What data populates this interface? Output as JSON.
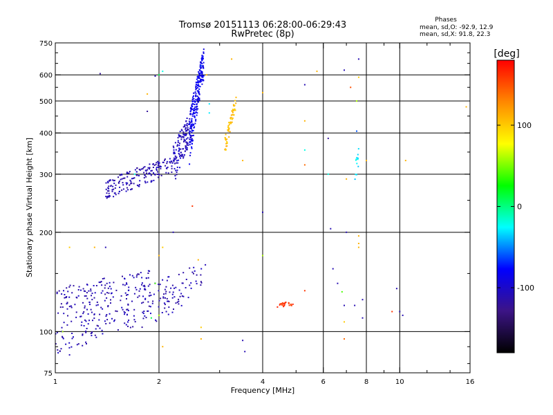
{
  "chart_data": {
    "type": "scatter",
    "title": "Tromsø 20151113 06:28:00-06:29:43",
    "subtitle": "RwPretec (8p)",
    "xlabel": "Frequency [MHz]",
    "ylabel": "Stationary phase Virtual Height [km]",
    "x_scale": "log",
    "y_scale": "log",
    "xlim": [
      1,
      16
    ],
    "ylim": [
      75,
      750
    ],
    "x_ticks": [
      1,
      2,
      4,
      6,
      8,
      10,
      16
    ],
    "x_tick_labels": [
      "1",
      "2",
      "4",
      "6",
      "8",
      "10",
      "16"
    ],
    "y_ticks": [
      75,
      100,
      200,
      300,
      400,
      500,
      600,
      750
    ],
    "y_tick_labels": [
      "75",
      "100",
      "200",
      "300",
      "400",
      "500",
      "600",
      "750"
    ],
    "x_minor_ticks": [
      3,
      5,
      7,
      9,
      12,
      14
    ],
    "y_minor_ticks": [
      80,
      90,
      150,
      250,
      350,
      450,
      550,
      650,
      700
    ],
    "grid": true,
    "stats": {
      "heading": "Phases",
      "line_O": "mean, sd,O: -92.9, 12.9",
      "line_X": "mean, sd,X:  91.8, 22.3"
    },
    "colorbar": {
      "label": "[deg]",
      "range": [
        -180,
        180
      ],
      "ticks": [
        100,
        0,
        -100
      ],
      "tick_labels": [
        "100",
        "0",
        "-100"
      ],
      "colormap": [
        "#000000",
        "#3c1486",
        "#0000ff",
        "#00ffff",
        "#00ff00",
        "#ffff00",
        "#ff8800",
        "#ff0000"
      ]
    },
    "clusters": [
      {
        "f_min": 1.0,
        "f_max": 1.9,
        "h_start": 110,
        "h_end": 130,
        "n": 260,
        "spread": 25,
        "phase": -110
      },
      {
        "f_min": 1.8,
        "f_max": 2.75,
        "h_start": 120,
        "h_end": 145,
        "n": 90,
        "spread": 18,
        "phase": -110
      },
      {
        "f_min": 1.4,
        "f_max": 2.2,
        "h_start": 270,
        "h_end": 320,
        "n": 180,
        "spread": 20,
        "phase": -110
      },
      {
        "f_min": 2.2,
        "f_max": 2.5,
        "h_start": 320,
        "h_end": 430,
        "n": 140,
        "spread": 45,
        "phase": -105
      },
      {
        "f_min": 2.45,
        "f_max": 2.7,
        "h_start": 380,
        "h_end": 650,
        "n": 220,
        "spread": 70,
        "phase": -85
      },
      {
        "f_min": 3.1,
        "f_max": 3.35,
        "h_start": 360,
        "h_end": 500,
        "n": 60,
        "spread": 25,
        "phase": 105
      },
      {
        "f_min": 4.4,
        "f_max": 4.9,
        "h_start": 120,
        "h_end": 122,
        "n": 22,
        "spread": 2,
        "phase": 160
      },
      {
        "f_min": 7.4,
        "f_max": 7.6,
        "h_start": 300,
        "h_end": 340,
        "n": 12,
        "spread": 20,
        "phase": -30
      }
    ],
    "points": [
      [
        1.35,
        605,
        -120
      ],
      [
        1.85,
        525,
        110
      ],
      [
        1.85,
        465,
        -120
      ],
      [
        1.95,
        595,
        -110
      ],
      [
        2.05,
        615,
        -20
      ],
      [
        2.0,
        600,
        10
      ],
      [
        2.75,
        600,
        110
      ],
      [
        2.65,
        640,
        -60
      ],
      [
        2.8,
        490,
        -30
      ],
      [
        2.8,
        460,
        -30
      ],
      [
        3.25,
        670,
        110
      ],
      [
        4.0,
        530,
        110
      ],
      [
        5.3,
        560,
        -110
      ],
      [
        5.75,
        615,
        110
      ],
      [
        5.3,
        435,
        110
      ],
      [
        5.3,
        355,
        -20
      ],
      [
        5.3,
        320,
        140
      ],
      [
        6.2,
        385,
        -120
      ],
      [
        6.2,
        300,
        -20
      ],
      [
        6.9,
        620,
        -110
      ],
      [
        7.2,
        550,
        150
      ],
      [
        7.5,
        405,
        -60
      ],
      [
        7.6,
        590,
        100
      ],
      [
        7.6,
        670,
        -110
      ],
      [
        7.5,
        500,
        60
      ],
      [
        6.3,
        205,
        -110
      ],
      [
        7.0,
        200,
        -110
      ],
      [
        7.6,
        195,
        110
      ],
      [
        7.6,
        185,
        110
      ],
      [
        7.6,
        180,
        110
      ],
      [
        7.0,
        290,
        110
      ],
      [
        10.4,
        330,
        110
      ],
      [
        15.6,
        480,
        110
      ],
      [
        4.0,
        230,
        -110
      ],
      [
        4.0,
        170,
        60
      ],
      [
        3.5,
        330,
        110
      ],
      [
        2.5,
        240,
        160
      ],
      [
        2.2,
        200,
        -110
      ],
      [
        1.7,
        300,
        -20
      ],
      [
        1.1,
        180,
        100
      ],
      [
        1.4,
        180,
        -110
      ],
      [
        1.3,
        180,
        110
      ],
      [
        2.05,
        180,
        100
      ],
      [
        2.0,
        170,
        110
      ],
      [
        2.0,
        112,
        60
      ],
      [
        2.05,
        90,
        110
      ],
      [
        2.65,
        103,
        100
      ],
      [
        2.65,
        95,
        110
      ],
      [
        2.6,
        165,
        110
      ],
      [
        2.1,
        115,
        -110
      ],
      [
        1.9,
        110,
        10
      ],
      [
        1.95,
        140,
        40
      ],
      [
        3.5,
        94,
        -110
      ],
      [
        3.55,
        87,
        -110
      ],
      [
        1.05,
        100,
        60
      ],
      [
        1.1,
        85,
        -110
      ],
      [
        1.05,
        96,
        -110
      ],
      [
        5.3,
        133,
        160
      ],
      [
        6.4,
        155,
        -110
      ],
      [
        6.6,
        140,
        -110
      ],
      [
        6.8,
        132,
        40
      ],
      [
        6.9,
        120,
        -110
      ],
      [
        6.9,
        107,
        100
      ],
      [
        7.4,
        120,
        -110
      ],
      [
        7.8,
        110,
        -110
      ],
      [
        7.8,
        125,
        -110
      ],
      [
        6.9,
        95,
        140
      ],
      [
        9.5,
        115,
        160
      ],
      [
        10.0,
        115,
        -110
      ],
      [
        10.2,
        112,
        -110
      ],
      [
        9.8,
        135,
        -110
      ],
      [
        8.0,
        330,
        110
      ]
    ]
  }
}
